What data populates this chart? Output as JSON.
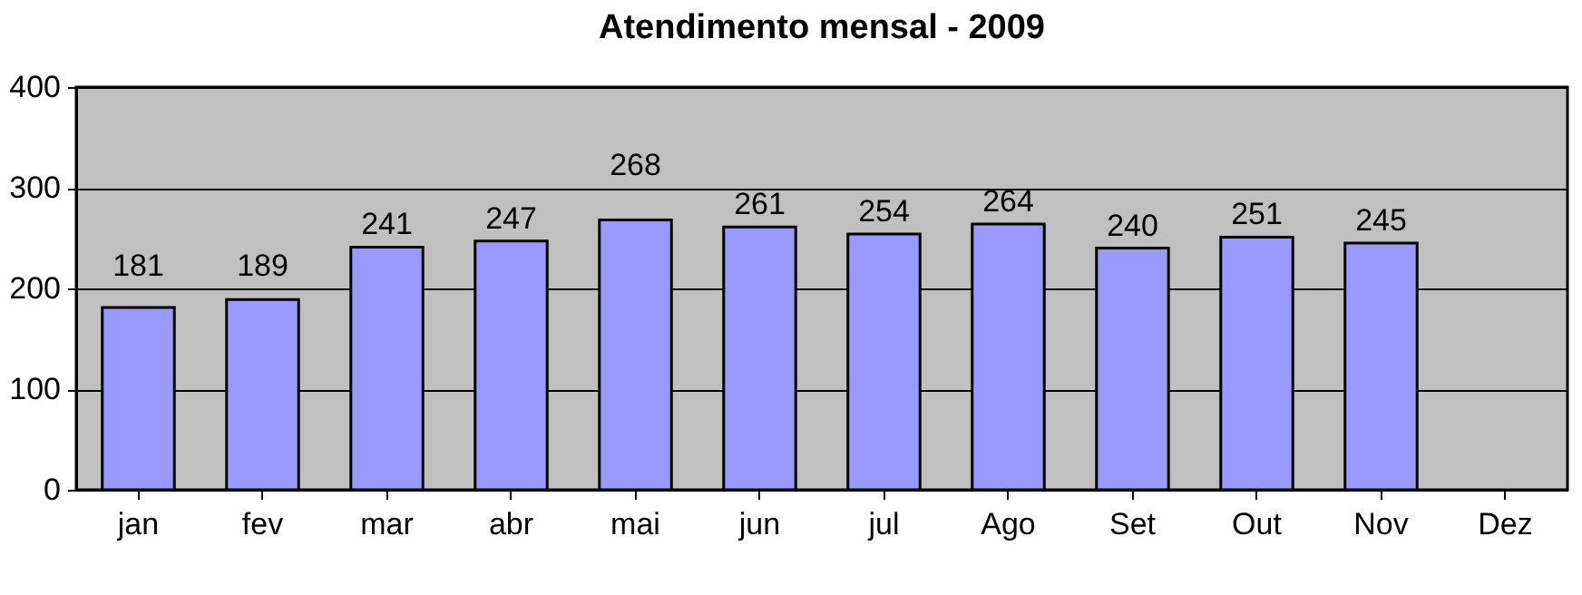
{
  "chart_data": {
    "type": "bar",
    "title": "Atendimento mensal - 2009",
    "categories": [
      "jan",
      "fev",
      "mar",
      "abr",
      "mai",
      "jun",
      "jul",
      "Ago",
      "Set",
      "Out",
      "Nov",
      "Dez"
    ],
    "values": [
      181,
      189,
      241,
      247,
      268,
      261,
      254,
      264,
      240,
      251,
      245,
      null
    ],
    "color": "#9999ff",
    "ylim": [
      0,
      400
    ],
    "yticks": [
      0,
      100,
      200,
      300,
      400
    ],
    "grid": "y",
    "data_labels": true
  }
}
